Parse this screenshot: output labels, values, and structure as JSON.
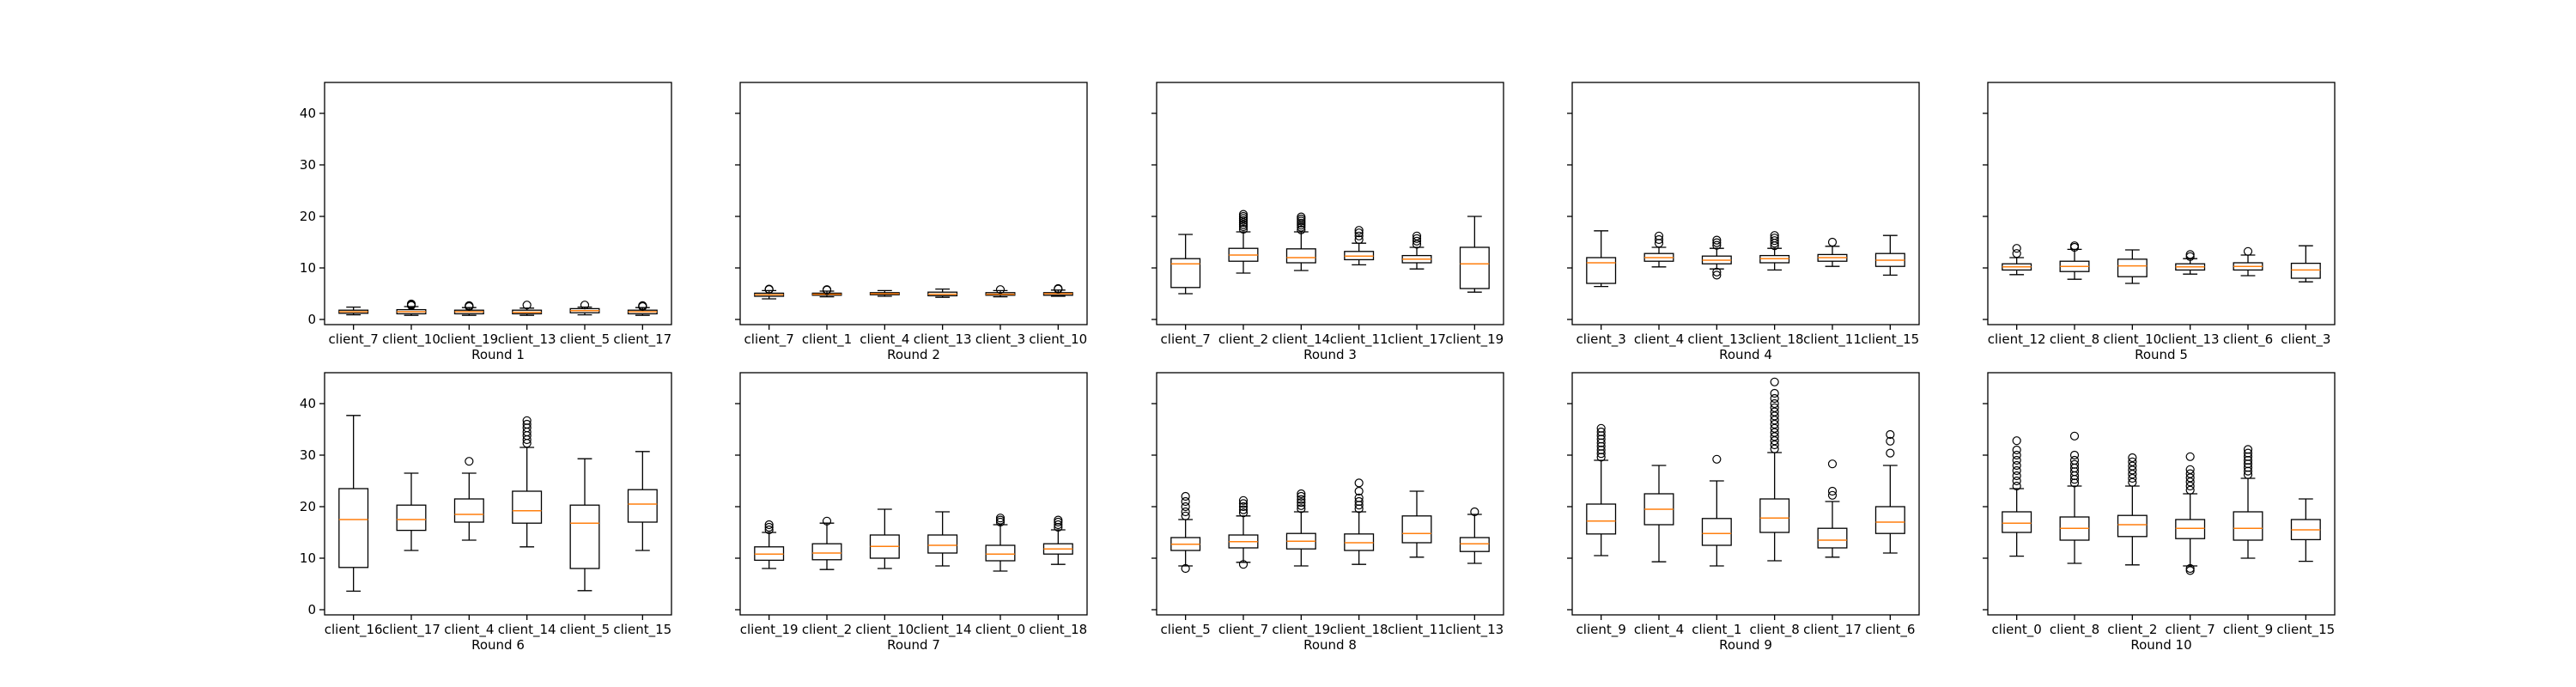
{
  "chart_data": [
    {
      "type": "box",
      "xlabel": "Round 1",
      "categories": [
        "client_7",
        "client_10",
        "client_19",
        "client_13",
        "client_5",
        "client_17"
      ],
      "ylim": [
        -1,
        46
      ],
      "yticks": [
        0,
        10,
        20,
        30,
        40
      ],
      "boxes": [
        {
          "whislo": 0.9,
          "q1": 1.2,
          "med": 1.5,
          "q3": 1.8,
          "whishi": 2.4,
          "fliers": []
        },
        {
          "whislo": 0.8,
          "q1": 1.1,
          "med": 1.5,
          "q3": 1.9,
          "whishi": 2.5,
          "fliers": [
            2.7,
            2.9,
            3.0
          ]
        },
        {
          "whislo": 0.8,
          "q1": 1.1,
          "med": 1.5,
          "q3": 1.8,
          "whishi": 2.3,
          "fliers": [
            2.5,
            2.6,
            2.7
          ]
        },
        {
          "whislo": 0.8,
          "q1": 1.1,
          "med": 1.4,
          "q3": 1.8,
          "whishi": 2.2,
          "fliers": [
            2.8
          ]
        },
        {
          "whislo": 0.9,
          "q1": 1.3,
          "med": 1.7,
          "q3": 2.1,
          "whishi": 2.4,
          "fliers": [
            2.8
          ]
        },
        {
          "whislo": 0.8,
          "q1": 1.1,
          "med": 1.5,
          "q3": 1.8,
          "whishi": 2.3,
          "fliers": [
            2.5,
            2.6,
            2.7
          ]
        }
      ]
    },
    {
      "type": "box",
      "xlabel": "Round 2",
      "categories": [
        "client_7",
        "client_1",
        "client_4",
        "client_13",
        "client_3",
        "client_10"
      ],
      "ylim": [
        -1,
        46
      ],
      "yticks": [
        0,
        10,
        20,
        30,
        40
      ],
      "boxes": [
        {
          "whislo": 4.0,
          "q1": 4.5,
          "med": 4.8,
          "q3": 5.1,
          "whishi": 5.6,
          "fliers": [
            5.8,
            5.9
          ]
        },
        {
          "whislo": 4.4,
          "q1": 4.7,
          "med": 4.9,
          "q3": 5.1,
          "whishi": 5.5,
          "fliers": [
            5.7,
            5.8
          ]
        },
        {
          "whislo": 4.5,
          "q1": 4.8,
          "med": 5.0,
          "q3": 5.2,
          "whishi": 5.6,
          "fliers": []
        },
        {
          "whislo": 4.3,
          "q1": 4.6,
          "med": 4.9,
          "q3": 5.3,
          "whishi": 5.9,
          "fliers": []
        },
        {
          "whislo": 4.4,
          "q1": 4.7,
          "med": 4.9,
          "q3": 5.2,
          "whishi": 5.6,
          "fliers": [
            5.8
          ]
        },
        {
          "whislo": 4.5,
          "q1": 4.7,
          "med": 5.0,
          "q3": 5.2,
          "whishi": 5.7,
          "fliers": [
            5.9,
            6.0
          ]
        }
      ]
    },
    {
      "type": "box",
      "xlabel": "Round 3",
      "categories": [
        "client_7",
        "client_2",
        "client_14",
        "client_11",
        "client_17",
        "client_19"
      ],
      "ylim": [
        -1,
        46
      ],
      "yticks": [
        0,
        10,
        20,
        30,
        40
      ],
      "boxes": [
        {
          "whislo": 5.0,
          "q1": 6.2,
          "med": 10.8,
          "q3": 11.8,
          "whishi": 16.5,
          "fliers": []
        },
        {
          "whislo": 9.0,
          "q1": 11.3,
          "med": 12.5,
          "q3": 13.8,
          "whishi": 17.0,
          "fliers": [
            17.5,
            18.0,
            18.4,
            18.8,
            19.2,
            19.6,
            20.0,
            20.4
          ]
        },
        {
          "whislo": 9.5,
          "q1": 11.0,
          "med": 12.0,
          "q3": 13.7,
          "whishi": 17.0,
          "fliers": [
            17.4,
            17.9,
            18.3,
            18.7,
            19.1,
            19.5,
            19.9
          ]
        },
        {
          "whislo": 10.6,
          "q1": 11.6,
          "med": 12.3,
          "q3": 13.2,
          "whishi": 14.8,
          "fliers": [
            15.5,
            16.2,
            16.8,
            17.3
          ]
        },
        {
          "whislo": 9.8,
          "q1": 11.0,
          "med": 11.7,
          "q3": 12.4,
          "whishi": 14.0,
          "fliers": [
            14.6,
            15.2,
            15.7,
            16.2
          ]
        },
        {
          "whislo": 5.3,
          "q1": 6.0,
          "med": 10.8,
          "q3": 14.0,
          "whishi": 20.0,
          "fliers": []
        }
      ]
    },
    {
      "type": "box",
      "xlabel": "Round 4",
      "categories": [
        "client_3",
        "client_4",
        "client_13",
        "client_18",
        "client_11",
        "client_15"
      ],
      "ylim": [
        -1,
        46
      ],
      "yticks": [
        0,
        10,
        20,
        30,
        40
      ],
      "boxes": [
        {
          "whislo": 6.4,
          "q1": 7.0,
          "med": 11.0,
          "q3": 12.0,
          "whishi": 17.2,
          "fliers": []
        },
        {
          "whislo": 10.2,
          "q1": 11.3,
          "med": 12.0,
          "q3": 12.8,
          "whishi": 14.0,
          "fliers": [
            14.8,
            15.5,
            16.2
          ]
        },
        {
          "whislo": 9.8,
          "q1": 10.8,
          "med": 11.5,
          "q3": 12.3,
          "whishi": 13.8,
          "fliers": [
            8.6,
            9.2,
            14.4,
            14.9,
            15.4
          ]
        },
        {
          "whislo": 9.6,
          "q1": 11.0,
          "med": 11.8,
          "q3": 12.4,
          "whishi": 13.8,
          "fliers": [
            14.3,
            14.8,
            15.3,
            15.8,
            16.3
          ]
        },
        {
          "whislo": 10.3,
          "q1": 11.3,
          "med": 12.0,
          "q3": 12.6,
          "whishi": 14.2,
          "fliers": [
            15.0
          ]
        },
        {
          "whislo": 8.6,
          "q1": 10.3,
          "med": 11.5,
          "q3": 12.8,
          "whishi": 16.3,
          "fliers": []
        }
      ]
    },
    {
      "type": "box",
      "xlabel": "Round 5",
      "categories": [
        "client_12",
        "client_8",
        "client_10",
        "client_13",
        "client_6",
        "client_3"
      ],
      "ylim": [
        -1,
        46
      ],
      "yticks": [
        0,
        10,
        20,
        30,
        40
      ],
      "boxes": [
        {
          "whislo": 8.7,
          "q1": 9.6,
          "med": 10.2,
          "q3": 10.8,
          "whishi": 12.0,
          "fliers": [
            12.8,
            13.8
          ]
        },
        {
          "whislo": 7.8,
          "q1": 9.3,
          "med": 10.3,
          "q3": 11.3,
          "whishi": 13.6,
          "fliers": [
            14.0,
            14.3
          ]
        },
        {
          "whislo": 7.0,
          "q1": 8.3,
          "med": 10.4,
          "q3": 11.7,
          "whishi": 13.5,
          "fliers": []
        },
        {
          "whislo": 8.8,
          "q1": 9.6,
          "med": 10.2,
          "q3": 10.8,
          "whishi": 11.8,
          "fliers": [
            12.2,
            12.6
          ]
        },
        {
          "whislo": 8.5,
          "q1": 9.6,
          "med": 10.3,
          "q3": 11.0,
          "whishi": 12.5,
          "fliers": [
            13.2
          ]
        },
        {
          "whislo": 7.3,
          "q1": 8.0,
          "med": 9.6,
          "q3": 10.9,
          "whishi": 14.3,
          "fliers": []
        }
      ]
    },
    {
      "type": "box",
      "xlabel": "Round 6",
      "categories": [
        "client_16",
        "client_17",
        "client_4",
        "client_14",
        "client_5",
        "client_15"
      ],
      "ylim": [
        -1,
        46
      ],
      "yticks": [
        0,
        10,
        20,
        30,
        40
      ],
      "boxes": [
        {
          "whislo": 3.6,
          "q1": 8.2,
          "med": 17.5,
          "q3": 23.5,
          "whishi": 37.7,
          "fliers": []
        },
        {
          "whislo": 11.5,
          "q1": 15.4,
          "med": 17.5,
          "q3": 20.3,
          "whishi": 26.5,
          "fliers": []
        },
        {
          "whislo": 13.5,
          "q1": 17.0,
          "med": 18.5,
          "q3": 21.5,
          "whishi": 26.5,
          "fliers": [
            28.8
          ]
        },
        {
          "whislo": 12.2,
          "q1": 16.8,
          "med": 19.2,
          "q3": 23.0,
          "whishi": 31.5,
          "fliers": [
            32.3,
            33.0,
            33.8,
            34.5,
            35.3,
            36.0,
            36.7
          ]
        },
        {
          "whislo": 3.7,
          "q1": 8.0,
          "med": 16.8,
          "q3": 20.3,
          "whishi": 29.3,
          "fliers": []
        },
        {
          "whislo": 11.5,
          "q1": 17.0,
          "med": 20.5,
          "q3": 23.3,
          "whishi": 30.7,
          "fliers": []
        }
      ]
    },
    {
      "type": "box",
      "xlabel": "Round 7",
      "categories": [
        "client_19",
        "client_2",
        "client_10",
        "client_14",
        "client_0",
        "client_18"
      ],
      "ylim": [
        -1,
        46
      ],
      "yticks": [
        0,
        10,
        20,
        30,
        40
      ],
      "boxes": [
        {
          "whislo": 8.0,
          "q1": 9.6,
          "med": 10.8,
          "q3": 12.2,
          "whishi": 15.0,
          "fliers": [
            15.5,
            16.0,
            16.5
          ]
        },
        {
          "whislo": 7.8,
          "q1": 9.7,
          "med": 11.0,
          "q3": 12.8,
          "whishi": 16.8,
          "fliers": [
            17.2
          ]
        },
        {
          "whislo": 8.0,
          "q1": 10.0,
          "med": 12.3,
          "q3": 14.5,
          "whishi": 19.5,
          "fliers": []
        },
        {
          "whislo": 8.5,
          "q1": 11.0,
          "med": 12.5,
          "q3": 14.5,
          "whishi": 19.0,
          "fliers": []
        },
        {
          "whislo": 7.5,
          "q1": 9.5,
          "med": 10.8,
          "q3": 12.5,
          "whishi": 16.5,
          "fliers": [
            17.0,
            17.4,
            17.8
          ]
        },
        {
          "whislo": 8.8,
          "q1": 10.8,
          "med": 11.8,
          "q3": 12.8,
          "whishi": 15.5,
          "fliers": [
            16.0,
            16.5,
            17.0,
            17.4
          ]
        }
      ]
    },
    {
      "type": "box",
      "xlabel": "Round 8",
      "categories": [
        "client_5",
        "client_7",
        "client_19",
        "client_18",
        "client_11",
        "client_13"
      ],
      "ylim": [
        -1,
        46
      ],
      "yticks": [
        0,
        10,
        20,
        30,
        40
      ],
      "boxes": [
        {
          "whislo": 8.5,
          "q1": 11.5,
          "med": 12.7,
          "q3": 14.0,
          "whishi": 17.5,
          "fliers": [
            8.0,
            18.2,
            19.0,
            20.0,
            21.0,
            22.0
          ]
        },
        {
          "whislo": 9.2,
          "q1": 12.0,
          "med": 13.2,
          "q3": 14.5,
          "whishi": 18.2,
          "fliers": [
            8.8,
            18.8,
            19.4,
            20.0,
            20.6,
            21.2
          ]
        },
        {
          "whislo": 8.5,
          "q1": 11.8,
          "med": 13.3,
          "q3": 14.8,
          "whishi": 19.0,
          "fliers": [
            19.6,
            20.2,
            20.8,
            21.4,
            22.0,
            22.5
          ]
        },
        {
          "whislo": 8.8,
          "q1": 11.5,
          "med": 13.0,
          "q3": 14.7,
          "whishi": 19.0,
          "fliers": [
            19.6,
            20.3,
            21.0,
            21.7,
            23.0,
            24.6
          ]
        },
        {
          "whislo": 10.2,
          "q1": 13.0,
          "med": 14.8,
          "q3": 18.2,
          "whishi": 23.0,
          "fliers": []
        },
        {
          "whislo": 9.0,
          "q1": 11.3,
          "med": 12.8,
          "q3": 14.0,
          "whishi": 18.5,
          "fliers": [
            19.0
          ]
        }
      ]
    },
    {
      "type": "box",
      "xlabel": "Round 9",
      "categories": [
        "client_9",
        "client_4",
        "client_1",
        "client_8",
        "client_17",
        "client_6"
      ],
      "ylim": [
        -1,
        46
      ],
      "yticks": [
        0,
        10,
        20,
        30,
        40
      ],
      "boxes": [
        {
          "whislo": 10.5,
          "q1": 14.7,
          "med": 17.2,
          "q3": 20.5,
          "whishi": 29.0,
          "fliers": [
            29.6,
            30.3,
            31.0,
            31.7,
            32.4,
            33.1,
            33.8,
            34.5,
            35.2
          ]
        },
        {
          "whislo": 9.3,
          "q1": 16.5,
          "med": 19.5,
          "q3": 22.5,
          "whishi": 28.0,
          "fliers": []
        },
        {
          "whislo": 8.5,
          "q1": 12.5,
          "med": 14.8,
          "q3": 17.7,
          "whishi": 25.0,
          "fliers": [
            29.2
          ]
        },
        {
          "whislo": 9.5,
          "q1": 15.0,
          "med": 17.8,
          "q3": 21.5,
          "whishi": 30.5,
          "fliers": [
            31.2,
            32.0,
            32.8,
            33.6,
            34.4,
            35.2,
            36.0,
            36.8,
            37.6,
            38.4,
            39.2,
            40.0,
            41.0,
            42.0,
            44.2
          ]
        },
        {
          "whislo": 10.2,
          "q1": 12.0,
          "med": 13.5,
          "q3": 15.8,
          "whishi": 21.0,
          "fliers": [
            22.2,
            23.0,
            28.3
          ]
        },
        {
          "whislo": 11.0,
          "q1": 14.8,
          "med": 17.0,
          "q3": 20.0,
          "whishi": 28.0,
          "fliers": [
            30.4,
            32.7,
            34.0
          ]
        }
      ]
    },
    {
      "type": "box",
      "xlabel": "Round 10",
      "categories": [
        "client_0",
        "client_8",
        "client_2",
        "client_7",
        "client_9",
        "client_15"
      ],
      "ylim": [
        -1,
        46
      ],
      "yticks": [
        0,
        10,
        20,
        30,
        40
      ],
      "boxes": [
        {
          "whislo": 10.4,
          "q1": 15.0,
          "med": 16.8,
          "q3": 19.0,
          "whishi": 23.5,
          "fliers": [
            24.0,
            25.0,
            26.0,
            27.0,
            28.0,
            29.0,
            30.0,
            31.0,
            32.8
          ]
        },
        {
          "whislo": 9.0,
          "q1": 13.5,
          "med": 15.8,
          "q3": 18.0,
          "whishi": 24.0,
          "fliers": [
            24.6,
            25.3,
            26.0,
            26.8,
            27.5,
            28.2,
            29.0,
            30.0,
            33.7
          ]
        },
        {
          "whislo": 8.7,
          "q1": 14.2,
          "med": 16.5,
          "q3": 18.3,
          "whishi": 24.0,
          "fliers": [
            24.7,
            25.5,
            26.3,
            27.1,
            27.9,
            28.7,
            29.5
          ]
        },
        {
          "whislo": 8.5,
          "q1": 13.8,
          "med": 15.8,
          "q3": 17.5,
          "whishi": 22.5,
          "fliers": [
            7.6,
            8.0,
            23.2,
            24.0,
            24.8,
            25.6,
            26.4,
            27.2,
            29.7
          ]
        },
        {
          "whislo": 10.0,
          "q1": 13.5,
          "med": 15.8,
          "q3": 19.0,
          "whishi": 25.5,
          "fliers": [
            26.2,
            26.9,
            27.6,
            28.3,
            29.0,
            29.7,
            30.4,
            31.1
          ]
        },
        {
          "whislo": 9.4,
          "q1": 13.6,
          "med": 15.5,
          "q3": 17.5,
          "whishi": 21.5,
          "fliers": []
        }
      ]
    }
  ]
}
